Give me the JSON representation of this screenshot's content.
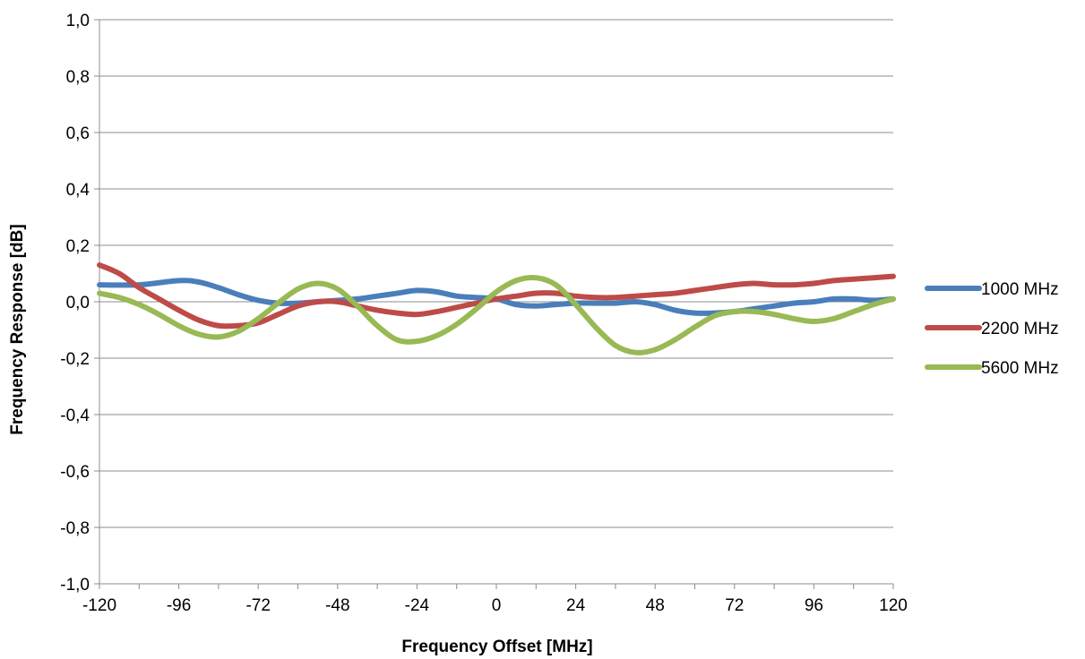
{
  "chart_data": {
    "type": "line",
    "title": "",
    "xlabel": "Frequency Offset [MHz]",
    "ylabel": "Frequency Response [dB]",
    "xlim": [
      -120,
      120
    ],
    "ylim": [
      -1.0,
      1.0
    ],
    "x_ticks": [
      -120,
      -96,
      -72,
      -48,
      -24,
      0,
      24,
      48,
      72,
      96,
      120
    ],
    "x_tick_labels": [
      "-120",
      "-96",
      "-72",
      "-48",
      "-24",
      "0",
      "24",
      "48",
      "72",
      "96",
      "120"
    ],
    "y_ticks": [
      -1.0,
      -0.8,
      -0.6,
      -0.4,
      -0.2,
      0.0,
      0.2,
      0.4,
      0.6,
      0.8,
      1.0
    ],
    "y_tick_labels": [
      "-1,0",
      "-0,8",
      "-0,6",
      "-0,4",
      "-0,2",
      "0,0",
      "0,2",
      "0,4",
      "0,6",
      "0,8",
      "1,0"
    ],
    "grid": "horizontal",
    "legend_position": "right",
    "series": [
      {
        "name": "1000 MHz",
        "color": "#4a7ebb",
        "x": [
          -120,
          -108,
          -96,
          -90,
          -84,
          -78,
          -72,
          -66,
          -60,
          -54,
          -48,
          -42,
          -36,
          -30,
          -24,
          -18,
          -12,
          -6,
          0,
          6,
          12,
          18,
          24,
          30,
          36,
          42,
          48,
          54,
          60,
          66,
          72,
          78,
          84,
          90,
          96,
          102,
          108,
          114,
          120
        ],
        "y": [
          0.06,
          0.06,
          0.075,
          0.07,
          0.05,
          0.025,
          0.005,
          -0.005,
          -0.005,
          0.0,
          0.005,
          0.01,
          0.02,
          0.03,
          0.04,
          0.035,
          0.02,
          0.015,
          0.01,
          -0.01,
          -0.015,
          -0.01,
          -0.005,
          -0.005,
          -0.005,
          0.0,
          -0.01,
          -0.03,
          -0.04,
          -0.04,
          -0.035,
          -0.025,
          -0.015,
          -0.005,
          0.0,
          0.01,
          0.01,
          0.005,
          0.01
        ]
      },
      {
        "name": "2200 MHz",
        "color": "#be4b48",
        "x": [
          -120,
          -114,
          -108,
          -102,
          -96,
          -90,
          -84,
          -78,
          -72,
          -66,
          -60,
          -54,
          -48,
          -42,
          -36,
          -30,
          -24,
          -18,
          -12,
          -6,
          0,
          6,
          12,
          18,
          24,
          30,
          36,
          42,
          48,
          54,
          60,
          66,
          72,
          78,
          84,
          90,
          96,
          102,
          108,
          114,
          120
        ],
        "y": [
          0.13,
          0.1,
          0.05,
          0.01,
          -0.03,
          -0.065,
          -0.085,
          -0.085,
          -0.075,
          -0.045,
          -0.015,
          0.0,
          0.0,
          -0.015,
          -0.03,
          -0.04,
          -0.045,
          -0.035,
          -0.02,
          -0.005,
          0.01,
          0.02,
          0.03,
          0.03,
          0.02,
          0.015,
          0.015,
          0.02,
          0.025,
          0.03,
          0.04,
          0.05,
          0.06,
          0.065,
          0.06,
          0.06,
          0.065,
          0.075,
          0.08,
          0.085,
          0.09
        ]
      },
      {
        "name": "5600 MHz",
        "color": "#98b954",
        "x": [
          -120,
          -114,
          -108,
          -102,
          -96,
          -90,
          -84,
          -78,
          -72,
          -66,
          -60,
          -54,
          -48,
          -42,
          -36,
          -30,
          -24,
          -18,
          -12,
          -6,
          0,
          6,
          12,
          18,
          24,
          30,
          36,
          42,
          48,
          54,
          60,
          66,
          72,
          78,
          84,
          90,
          96,
          102,
          108,
          114,
          120
        ],
        "y": [
          0.03,
          0.015,
          -0.01,
          -0.045,
          -0.085,
          -0.115,
          -0.125,
          -0.105,
          -0.06,
          -0.005,
          0.045,
          0.065,
          0.045,
          -0.015,
          -0.085,
          -0.135,
          -0.14,
          -0.12,
          -0.08,
          -0.025,
          0.035,
          0.075,
          0.085,
          0.06,
          -0.01,
          -0.09,
          -0.155,
          -0.18,
          -0.17,
          -0.135,
          -0.09,
          -0.05,
          -0.035,
          -0.035,
          -0.045,
          -0.06,
          -0.07,
          -0.06,
          -0.035,
          -0.01,
          0.01
        ]
      }
    ]
  }
}
